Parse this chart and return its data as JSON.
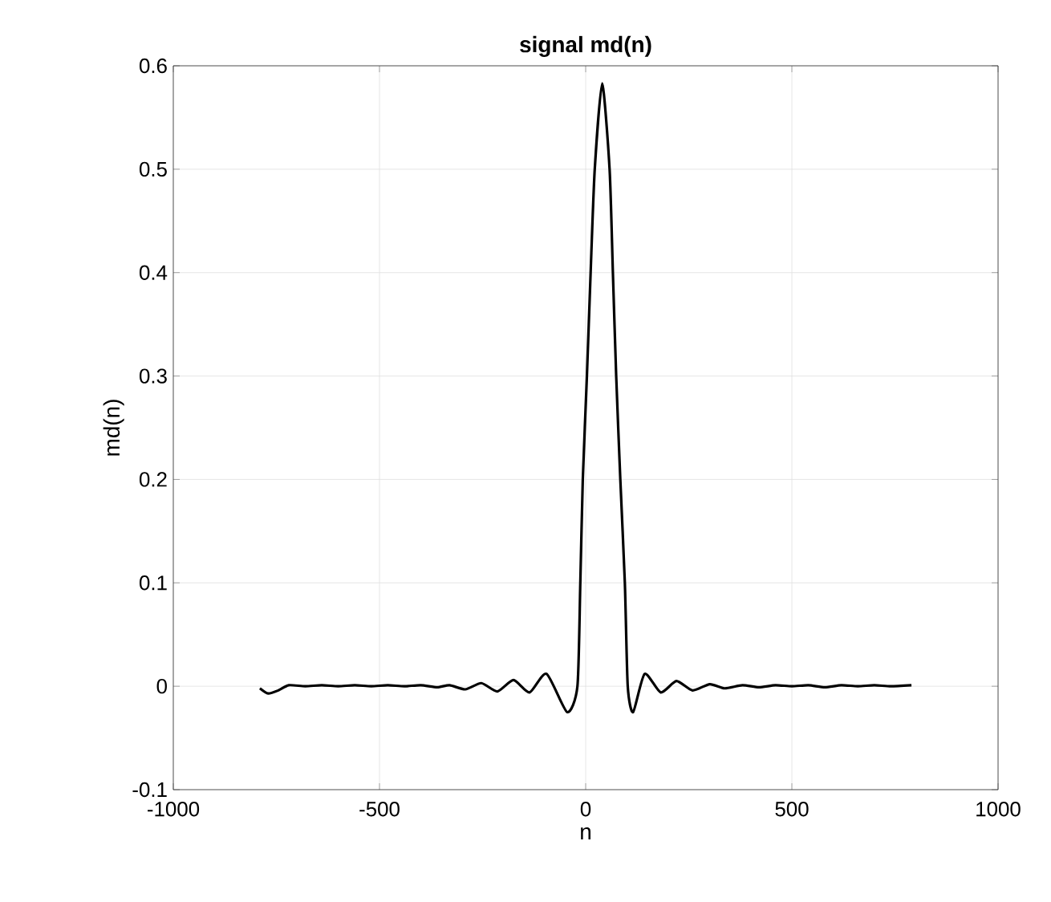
{
  "chart_data": {
    "type": "line",
    "title": "**signal md(n)**",
    "xlabel": "n",
    "ylabel": "md(n)",
    "x": [
      -790,
      -770,
      -745,
      -720,
      -680,
      -640,
      -600,
      -560,
      -520,
      -480,
      -440,
      -400,
      -360,
      -330,
      -292,
      -253,
      -214,
      -175,
      -136,
      -95,
      -45,
      -20,
      -13,
      -7,
      3,
      12,
      22,
      40,
      58,
      66,
      74,
      84,
      95,
      102,
      115,
      143,
      182,
      220,
      259,
      301,
      337,
      380,
      420,
      460,
      500,
      540,
      580,
      620,
      660,
      700,
      740,
      790
    ],
    "series": [
      {
        "color": "#000000",
        "values": [
          -0.002,
          -0.007,
          -0.004,
          0.001,
          0.0,
          0.001,
          0.0,
          0.001,
          0.0,
          0.001,
          0.0,
          0.001,
          -0.001,
          0.001,
          -0.003,
          0.003,
          -0.005,
          0.006,
          -0.006,
          0.012,
          -0.025,
          0.0,
          0.1,
          0.2,
          0.3,
          0.4,
          0.5,
          0.583,
          0.5,
          0.4,
          0.3,
          0.2,
          0.1,
          0.0,
          -0.025,
          0.012,
          -0.006,
          0.005,
          -0.004,
          0.002,
          -0.002,
          0.001,
          -0.001,
          0.001,
          0.0,
          0.001,
          -0.001,
          0.001,
          0.0,
          0.001,
          0.0,
          0.001
        ]
      }
    ],
    "xlim": [
      -1000,
      1000
    ],
    "xticks": [
      -1000,
      -500,
      0,
      500,
      1000
    ],
    "ylim": [
      -0.1,
      0.6
    ],
    "yticks": [
      -0.1,
      0,
      0.1,
      0.2,
      0.3,
      0.4,
      0.5,
      0.6
    ],
    "grid": true,
    "marker": "none",
    "line_style": "solid"
  }
}
